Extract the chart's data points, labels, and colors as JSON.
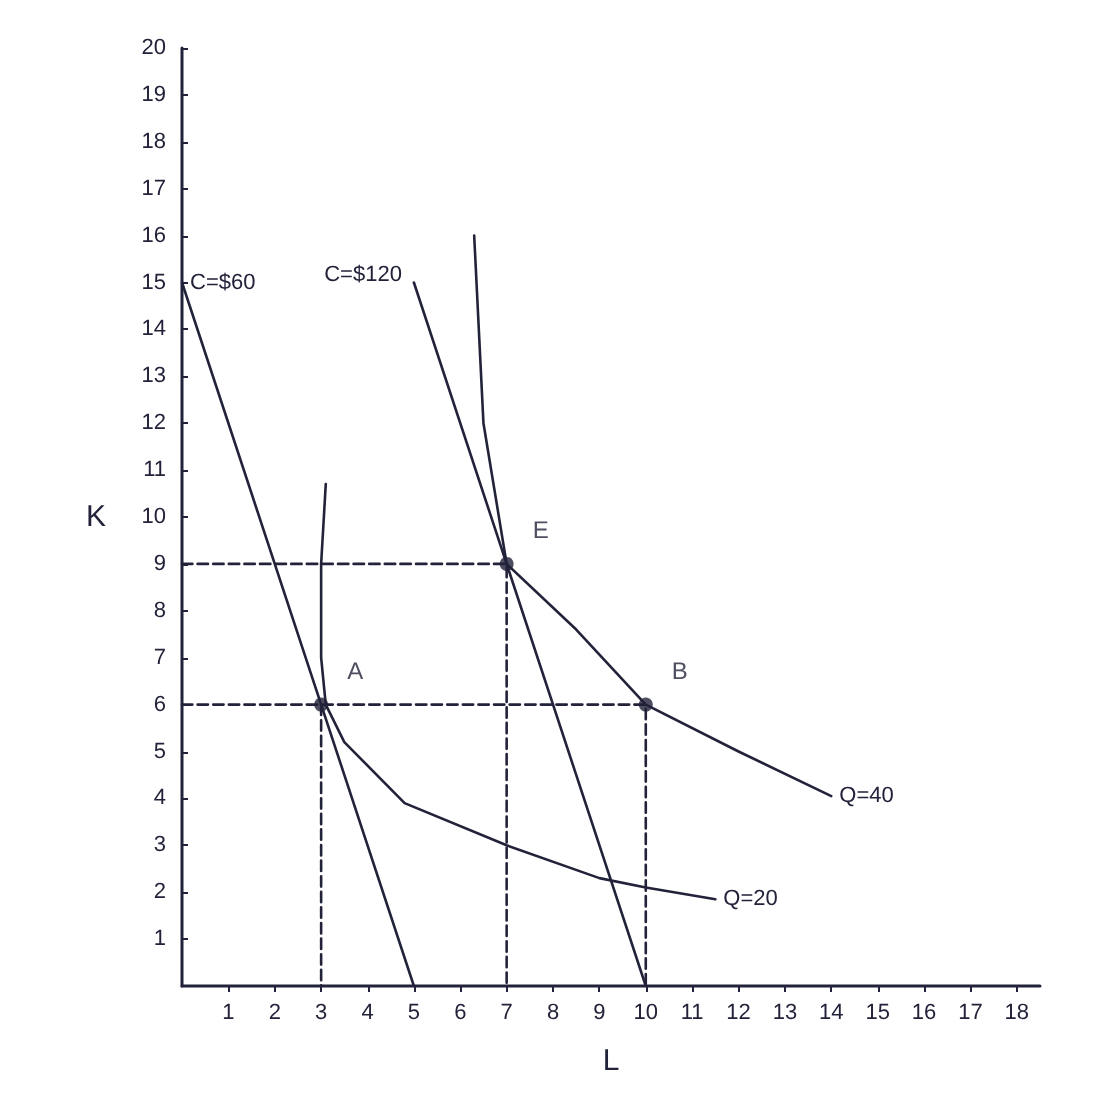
{
  "chart_data": {
    "type": "line",
    "xlabel": "L",
    "ylabel": "K",
    "xlim": [
      0,
      18.5
    ],
    "ylim": [
      0,
      20
    ],
    "xticks": [
      1,
      2,
      3,
      4,
      5,
      6,
      7,
      8,
      9,
      10,
      11,
      12,
      13,
      14,
      15,
      16,
      17,
      18
    ],
    "yticks": [
      1,
      2,
      3,
      4,
      5,
      6,
      7,
      8,
      9,
      10,
      11,
      12,
      13,
      14,
      15,
      16,
      17,
      18,
      19,
      20
    ],
    "marker": "none",
    "line_style": "solid",
    "series": [
      {
        "name": "C=$60",
        "color": "#22223a",
        "x": [
          5,
          0
        ],
        "values": [
          0,
          15
        ]
      },
      {
        "name": "C=$120",
        "color": "#22223a",
        "x": [
          10,
          5
        ],
        "values": [
          0,
          15
        ]
      },
      {
        "name": "Q=20",
        "color": "#22223a",
        "x": [
          3.1,
          3,
          3,
          3.1,
          3.5,
          4.8,
          7,
          9,
          10,
          11.5
        ],
        "values": [
          10.7,
          9,
          7,
          6,
          5.2,
          3.9,
          3,
          2.3,
          2.1,
          1.85
        ]
      },
      {
        "name": "Q=40",
        "color": "#22223a",
        "x": [
          6.3,
          6.5,
          7,
          8.5,
          10,
          12,
          14
        ],
        "values": [
          16,
          12,
          9,
          7.6,
          6,
          5,
          4.05
        ]
      },
      {
        "color": "#22223a",
        "line_style": "dashed",
        "x": [
          0,
          7,
          7
        ],
        "values": [
          9,
          9,
          0
        ]
      },
      {
        "color": "#22223a",
        "line_style": "dashed",
        "x": [
          0,
          10,
          10
        ],
        "values": [
          6,
          6,
          0
        ]
      },
      {
        "color": "#22223a",
        "line_style": "dashed",
        "x": [
          3,
          3
        ],
        "values": [
          6,
          0
        ]
      },
      {
        "type": "scatter",
        "marker": "circle",
        "color": "#22223a",
        "x": [
          3,
          7,
          10
        ],
        "values": [
          6,
          9,
          6
        ]
      }
    ],
    "annotations": [
      {
        "text": "A",
        "x": 3,
        "y": 6
      },
      {
        "text": "E",
        "x": 7,
        "y": 9
      },
      {
        "text": "B",
        "x": 10,
        "y": 6
      }
    ]
  }
}
